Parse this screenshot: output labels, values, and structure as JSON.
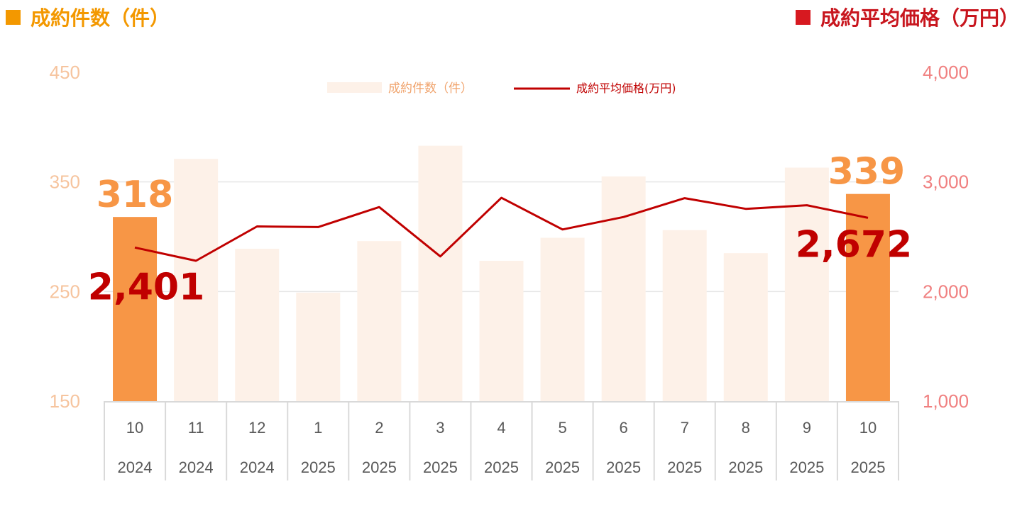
{
  "header": {
    "left_title": "成約件数（件）",
    "right_title": "成約平均価格（万円）"
  },
  "legend": {
    "bar_label": "成約件数（件）",
    "line_label": "成約平均価格(万円)"
  },
  "colors": {
    "bar_highlight": "#f79646",
    "bar_muted": "#fdf1e8",
    "line": "#c00000",
    "left_axis": "#f6c49e",
    "right_axis": "#f08080",
    "grid": "#e6e6e6"
  },
  "chart_data": {
    "type": "bar",
    "categories": [
      {
        "month": "10",
        "year": "2024"
      },
      {
        "month": "11",
        "year": "2024"
      },
      {
        "month": "12",
        "year": "2024"
      },
      {
        "month": "1",
        "year": "2025"
      },
      {
        "month": "2",
        "year": "2025"
      },
      {
        "month": "3",
        "year": "2025"
      },
      {
        "month": "4",
        "year": "2025"
      },
      {
        "month": "5",
        "year": "2025"
      },
      {
        "month": "6",
        "year": "2025"
      },
      {
        "month": "7",
        "year": "2025"
      },
      {
        "month": "8",
        "year": "2025"
      },
      {
        "month": "9",
        "year": "2025"
      },
      {
        "month": "10",
        "year": "2025"
      }
    ],
    "series": [
      {
        "name": "成約件数（件）",
        "type": "bar",
        "axis": "left",
        "values": [
          318,
          371,
          289,
          249,
          296,
          383,
          278,
          299,
          355,
          306,
          285,
          363,
          339
        ],
        "highlight": [
          true,
          false,
          false,
          false,
          false,
          false,
          false,
          false,
          false,
          false,
          false,
          false,
          true
        ]
      },
      {
        "name": "成約平均価格(万円)",
        "type": "line",
        "axis": "right",
        "values": [
          2401,
          2280,
          2594,
          2588,
          2770,
          2320,
          2855,
          2566,
          2680,
          2852,
          2754,
          2787,
          2672
        ]
      }
    ],
    "left_axis": {
      "ylim": [
        150,
        450
      ],
      "ticks": [
        "150",
        "250",
        "350",
        "450"
      ]
    },
    "right_axis": {
      "ylim": [
        1000,
        4000
      ],
      "ticks": [
        "1,000",
        "2,000",
        "3,000",
        "4,000"
      ]
    },
    "data_labels": [
      {
        "series": 0,
        "index": 0,
        "text": "318"
      },
      {
        "series": 0,
        "index": 12,
        "text": "339"
      },
      {
        "series": 1,
        "index": 0,
        "text": "2,401"
      },
      {
        "series": 1,
        "index": 12,
        "text": "2,672"
      }
    ],
    "grid": true,
    "legend_position": "top"
  }
}
